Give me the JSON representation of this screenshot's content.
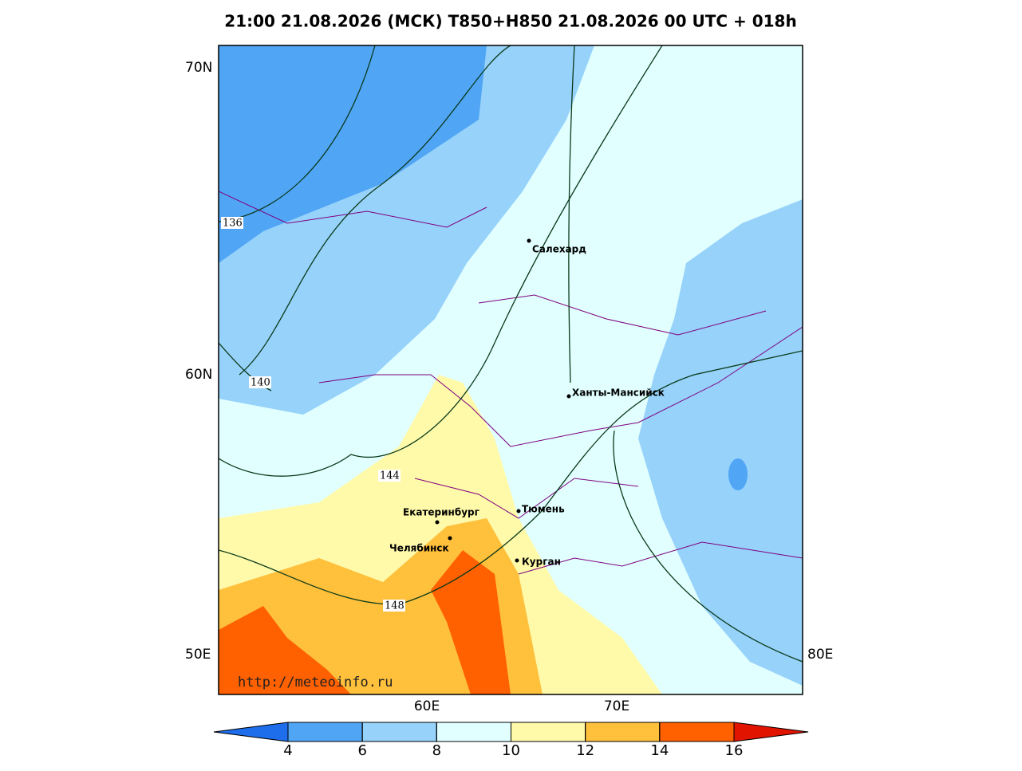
{
  "title": "21:00 21.08.2026 (МСК) T850+H850 21.08.2026 00 UTC + 018h",
  "lat_labels": [
    "70N",
    "60N"
  ],
  "lon_labels": [
    "50E",
    "60E",
    "70E",
    "80E"
  ],
  "cities": [
    "Салехард",
    "Ханты-Мансийск",
    "Екатеринбург",
    "Тюмень",
    "Челябинск",
    "Курган"
  ],
  "contour_labels": [
    "136",
    "140",
    "144",
    "148"
  ],
  "watermark": "http://meteoinfo.ru",
  "colorbar": {
    "ticks": [
      4,
      6,
      8,
      10,
      12,
      14,
      16
    ],
    "colors": [
      "#1e6eeb",
      "#50a5f5",
      "#96d2fa",
      "#e1ffff",
      "#fffaaa",
      "#ffc03c",
      "#ff6000",
      "#e11400"
    ]
  }
}
